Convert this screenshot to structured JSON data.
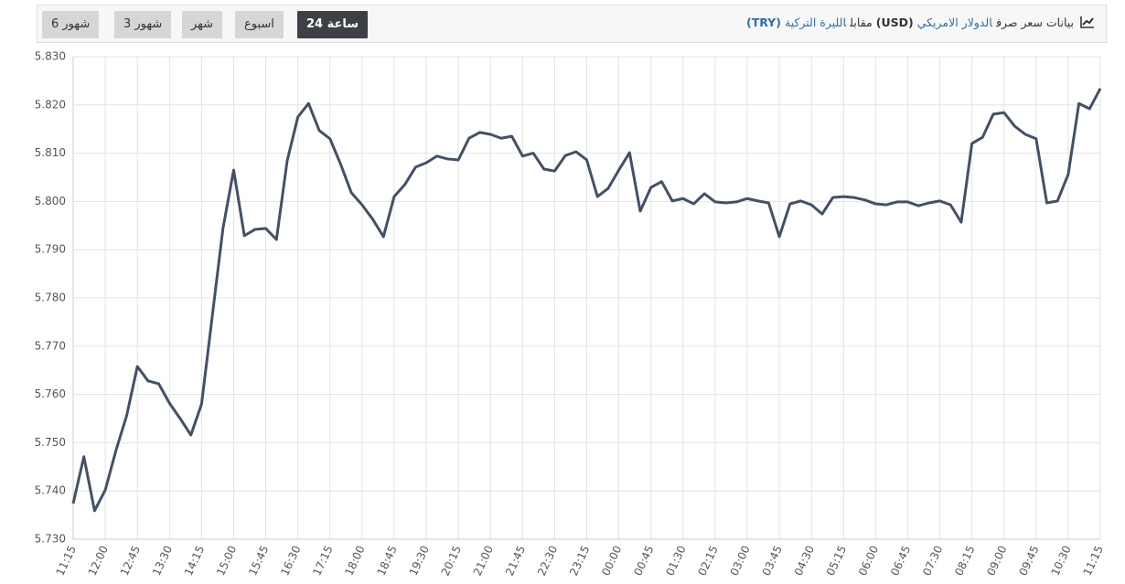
{
  "header": {
    "title_parts": [
      "بيانات سعر صرف",
      "الدولار الامريكي",
      "(USD)",
      "مقابل",
      "الليرة التركية",
      "(TRY)"
    ],
    "buttons": [
      "6 شهور",
      "3 شهور",
      "شهر",
      "اسبوع",
      "24 ساعة"
    ],
    "active_button": 4
  },
  "chart_data": {
    "type": "line",
    "categories": [
      "11:15",
      null,
      null,
      "12:00",
      null,
      null,
      "12:45",
      null,
      null,
      "13:30",
      null,
      null,
      "14:15",
      null,
      null,
      "15:00",
      null,
      null,
      "15:45",
      null,
      null,
      "16:30",
      null,
      null,
      "17:15",
      null,
      null,
      "18:00",
      null,
      null,
      "18:45",
      null,
      null,
      "19:30",
      null,
      null,
      "20:15",
      null,
      null,
      "21:00",
      null,
      null,
      "21:45",
      null,
      null,
      "22:30",
      null,
      null,
      "23:15",
      null,
      null,
      "00:00",
      null,
      null,
      "00:45",
      null,
      null,
      "01:30",
      null,
      null,
      "02:15",
      null,
      null,
      "03:00",
      null,
      null,
      "03:45",
      null,
      null,
      "04:30",
      null,
      null,
      "05:15",
      null,
      null,
      "06:00",
      null,
      null,
      "06:45",
      null,
      null,
      "07:30",
      null,
      null,
      "08:15",
      null,
      null,
      "09:00",
      null,
      null,
      "09:45",
      null,
      null,
      "10:30",
      null,
      null,
      "11:15"
    ],
    "values": [
      5.7374,
      5.7471,
      5.7359,
      5.7402,
      5.7484,
      5.7556,
      5.7658,
      5.7628,
      5.7622,
      5.7582,
      5.755,
      5.7516,
      5.758,
      5.7762,
      5.7944,
      5.8065,
      5.7929,
      5.7942,
      5.7944,
      5.7921,
      5.8084,
      5.8175,
      5.8203,
      5.8147,
      5.813,
      5.8077,
      5.8018,
      5.7993,
      5.7963,
      5.7927,
      5.801,
      5.8035,
      5.8071,
      5.808,
      5.8094,
      5.8088,
      5.8086,
      5.8131,
      5.8143,
      5.8139,
      5.8131,
      5.8135,
      5.8094,
      5.81,
      5.8067,
      5.8063,
      5.8095,
      5.8103,
      5.8086,
      5.801,
      5.8027,
      5.8065,
      5.8101,
      5.798,
      5.8029,
      5.8041,
      5.8001,
      5.8006,
      5.7995,
      5.8016,
      5.7999,
      5.7997,
      5.7999,
      5.8006,
      5.8001,
      5.7997,
      5.7927,
      5.7995,
      5.8001,
      5.7993,
      5.7974,
      5.8008,
      5.801,
      5.8008,
      5.8003,
      5.7995,
      5.7993,
      5.7999,
      5.7999,
      5.7991,
      5.7997,
      5.8001,
      5.7993,
      5.7957,
      5.812,
      5.8133,
      5.8181,
      5.8184,
      5.8156,
      5.8139,
      5.813,
      5.7997,
      5.8001,
      5.8056,
      5.8203,
      5.8192,
      5.8234
    ],
    "color": "#445066",
    "ylim": [
      5.73,
      5.83
    ],
    "yticks": [
      {
        "value": 5.73,
        "label": "5.730"
      },
      {
        "value": 5.74,
        "label": "5.740"
      },
      {
        "value": 5.75,
        "label": "5.750"
      },
      {
        "value": 5.76,
        "label": "5.760"
      },
      {
        "value": 5.77,
        "label": "5.770"
      },
      {
        "value": 5.78,
        "label": "5.780"
      },
      {
        "value": 5.79,
        "label": "5.790"
      },
      {
        "value": 5.8,
        "label": "5.800"
      },
      {
        "value": 5.81,
        "label": "5.810"
      },
      {
        "value": 5.82,
        "label": "5.820"
      },
      {
        "value": 5.83,
        "label": "5.830"
      }
    ],
    "grid": true
  }
}
